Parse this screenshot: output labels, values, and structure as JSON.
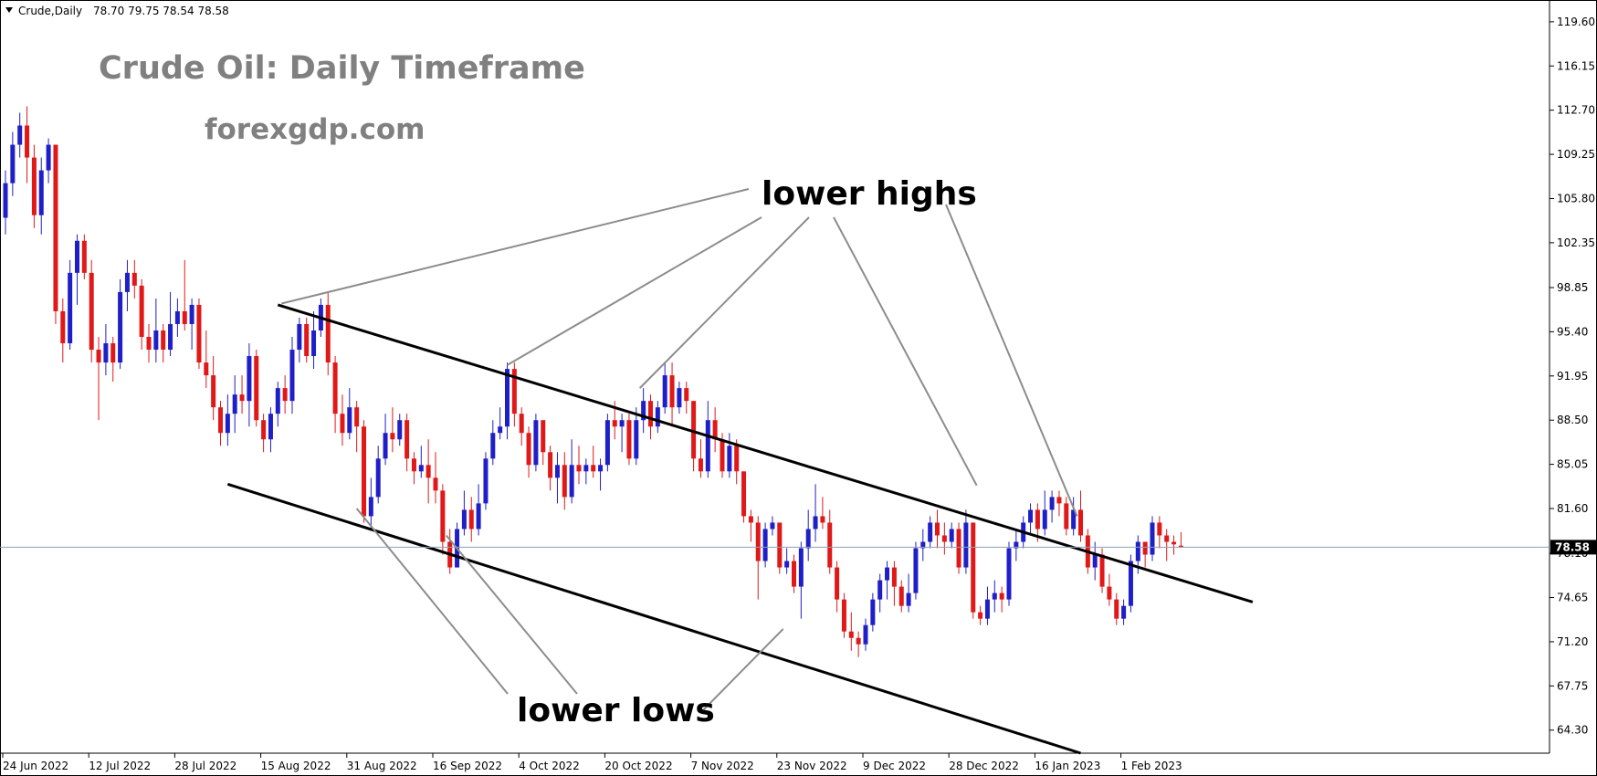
{
  "header": {
    "symbol": "Crude,Daily",
    "ohlc": "78.70 79.75 78.54 78.58"
  },
  "watermark": {
    "title": "Crude Oil: Daily Timeframe",
    "site": "forexgdp.com"
  },
  "annotations": {
    "upper": "lower highs",
    "lower": "lower lows"
  },
  "current_price_label": "78.58",
  "colors": {
    "bull": "#1f1fc8",
    "bear": "#e01818",
    "channel": "#000000",
    "pointer": "#8c8c8c",
    "price_line": "#8ea0b8"
  },
  "chart_data": {
    "type": "candlestick",
    "ylim": [
      62.5,
      121.3
    ],
    "yticks": [
      64.3,
      67.75,
      71.2,
      74.65,
      78.1,
      81.6,
      85.05,
      88.5,
      91.95,
      95.4,
      98.85,
      102.35,
      105.8,
      109.25,
      112.7,
      116.15,
      119.6
    ],
    "ytick_labels": [
      "64.30",
      "67.75",
      "71.20",
      "74.65",
      "78.10",
      "81.60",
      "85.05",
      "88.50",
      "91.95",
      "95.40",
      "98.85",
      "102.35",
      "105.80",
      "109.25",
      "112.70",
      "116.15",
      "119.60"
    ],
    "xtick_labels": [
      "24 Jun 2022",
      "12 Jul 2022",
      "28 Jul 2022",
      "15 Aug 2022",
      "31 Aug 2022",
      "16 Sep 2022",
      "4 Oct 2022",
      "20 Oct 2022",
      "7 Nov 2022",
      "23 Nov 2022",
      "9 Dec 2022",
      "28 Dec 2022",
      "16 Jan 2023",
      "1 Feb 2023"
    ],
    "xtick_bars": [
      0,
      12,
      24,
      36,
      48,
      60,
      72,
      84,
      96,
      108,
      120,
      132,
      144,
      156
    ],
    "current_price": 78.58,
    "candles": [
      {
        "o": 104.3,
        "c": 107.0,
        "h": 108.0,
        "l": 103.0
      },
      {
        "o": 107.0,
        "c": 110.0,
        "h": 111.0,
        "l": 106.0
      },
      {
        "o": 110.0,
        "c": 111.5,
        "h": 112.5,
        "l": 109.0
      },
      {
        "o": 111.5,
        "c": 109.0,
        "h": 113.0,
        "l": 107.0
      },
      {
        "o": 109.0,
        "c": 104.5,
        "h": 110.0,
        "l": 103.5
      },
      {
        "o": 104.5,
        "c": 108.0,
        "h": 109.0,
        "l": 103.0
      },
      {
        "o": 108.0,
        "c": 110.0,
        "h": 110.5,
        "l": 107.0
      },
      {
        "o": 110.0,
        "c": 97.0,
        "h": 110.0,
        "l": 96.0
      },
      {
        "o": 97.0,
        "c": 94.5,
        "h": 98.0,
        "l": 93.0
      },
      {
        "o": 94.5,
        "c": 100.0,
        "h": 101.0,
        "l": 94.0
      },
      {
        "o": 100.0,
        "c": 102.5,
        "h": 103.0,
        "l": 97.5
      },
      {
        "o": 102.5,
        "c": 100.0,
        "h": 103.0,
        "l": 99.5
      },
      {
        "o": 100.0,
        "c": 94.0,
        "h": 101.0,
        "l": 93.0
      },
      {
        "o": 94.0,
        "c": 93.0,
        "h": 95.0,
        "l": 88.5
      },
      {
        "o": 93.0,
        "c": 94.5,
        "h": 96.0,
        "l": 92.0
      },
      {
        "o": 94.5,
        "c": 93.0,
        "h": 95.0,
        "l": 91.5
      },
      {
        "o": 93.0,
        "c": 98.5,
        "h": 99.5,
        "l": 92.5
      },
      {
        "o": 98.5,
        "c": 100.0,
        "h": 101.0,
        "l": 97.0
      },
      {
        "o": 100.0,
        "c": 99.0,
        "h": 101.0,
        "l": 98.0
      },
      {
        "o": 99.0,
        "c": 95.0,
        "h": 99.5,
        "l": 94.0
      },
      {
        "o": 95.0,
        "c": 94.0,
        "h": 96.0,
        "l": 93.0
      },
      {
        "o": 94.0,
        "c": 95.5,
        "h": 98.0,
        "l": 93.0
      },
      {
        "o": 95.5,
        "c": 94.0,
        "h": 96.0,
        "l": 93.0
      },
      {
        "o": 94.0,
        "c": 96.0,
        "h": 98.5,
        "l": 93.5
      },
      {
        "o": 96.0,
        "c": 97.0,
        "h": 98.0,
        "l": 95.0
      },
      {
        "o": 97.0,
        "c": 96.0,
        "h": 101.0,
        "l": 95.5
      },
      {
        "o": 96.0,
        "c": 97.5,
        "h": 98.0,
        "l": 94.0
      },
      {
        "o": 97.5,
        "c": 93.0,
        "h": 98.0,
        "l": 92.5
      },
      {
        "o": 93.0,
        "c": 92.0,
        "h": 95.5,
        "l": 91.0
      },
      {
        "o": 92.0,
        "c": 89.5,
        "h": 93.5,
        "l": 88.5
      },
      {
        "o": 89.5,
        "c": 87.5,
        "h": 90.0,
        "l": 86.5
      },
      {
        "o": 87.5,
        "c": 89.0,
        "h": 90.5,
        "l": 86.5
      },
      {
        "o": 89.0,
        "c": 90.5,
        "h": 92.0,
        "l": 87.5
      },
      {
        "o": 90.5,
        "c": 90.0,
        "h": 92.0,
        "l": 89.0
      },
      {
        "o": 90.0,
        "c": 93.5,
        "h": 94.5,
        "l": 88.0
      },
      {
        "o": 93.5,
        "c": 88.5,
        "h": 94.0,
        "l": 88.0
      },
      {
        "o": 88.5,
        "c": 87.0,
        "h": 89.0,
        "l": 86.0
      },
      {
        "o": 87.0,
        "c": 89.0,
        "h": 89.5,
        "l": 86.0
      },
      {
        "o": 89.0,
        "c": 91.0,
        "h": 91.5,
        "l": 88.0
      },
      {
        "o": 91.0,
        "c": 90.0,
        "h": 92.0,
        "l": 89.0
      },
      {
        "o": 90.0,
        "c": 94.0,
        "h": 95.0,
        "l": 89.0
      },
      {
        "o": 94.0,
        "c": 96.0,
        "h": 96.5,
        "l": 93.0
      },
      {
        "o": 96.0,
        "c": 93.5,
        "h": 96.5,
        "l": 93.0
      },
      {
        "o": 93.5,
        "c": 95.5,
        "h": 97.0,
        "l": 92.5
      },
      {
        "o": 95.5,
        "c": 97.5,
        "h": 98.0,
        "l": 95.0
      },
      {
        "o": 97.5,
        "c": 93.0,
        "h": 98.5,
        "l": 92.0
      },
      {
        "o": 93.0,
        "c": 89.0,
        "h": 93.5,
        "l": 87.5
      },
      {
        "o": 89.0,
        "c": 87.5,
        "h": 90.5,
        "l": 86.5
      },
      {
        "o": 87.5,
        "c": 89.5,
        "h": 91.0,
        "l": 87.0
      },
      {
        "o": 89.5,
        "c": 88.0,
        "h": 90.0,
        "l": 86.0
      },
      {
        "o": 88.0,
        "c": 81.0,
        "h": 88.5,
        "l": 80.5
      },
      {
        "o": 81.0,
        "c": 82.5,
        "h": 84.0,
        "l": 80.0
      },
      {
        "o": 82.5,
        "c": 85.5,
        "h": 86.5,
        "l": 82.0
      },
      {
        "o": 85.5,
        "c": 87.5,
        "h": 89.0,
        "l": 85.0
      },
      {
        "o": 87.5,
        "c": 87.0,
        "h": 89.5,
        "l": 86.0
      },
      {
        "o": 87.0,
        "c": 88.5,
        "h": 89.0,
        "l": 86.5
      },
      {
        "o": 88.5,
        "c": 85.5,
        "h": 89.0,
        "l": 84.5
      },
      {
        "o": 85.5,
        "c": 84.5,
        "h": 86.0,
        "l": 83.5
      },
      {
        "o": 84.5,
        "c": 85.0,
        "h": 86.5,
        "l": 84.0
      },
      {
        "o": 85.0,
        "c": 84.0,
        "h": 87.0,
        "l": 82.0
      },
      {
        "o": 84.0,
        "c": 83.0,
        "h": 86.0,
        "l": 82.0
      },
      {
        "o": 83.0,
        "c": 79.0,
        "h": 83.5,
        "l": 78.0
      },
      {
        "o": 79.0,
        "c": 77.0,
        "h": 80.0,
        "l": 76.5
      },
      {
        "o": 77.0,
        "c": 80.0,
        "h": 80.5,
        "l": 77.0
      },
      {
        "o": 80.0,
        "c": 81.5,
        "h": 83.0,
        "l": 79.5
      },
      {
        "o": 81.5,
        "c": 80.0,
        "h": 82.5,
        "l": 79.0
      },
      {
        "o": 80.0,
        "c": 82.0,
        "h": 83.5,
        "l": 79.5
      },
      {
        "o": 82.0,
        "c": 85.5,
        "h": 86.0,
        "l": 81.5
      },
      {
        "o": 85.5,
        "c": 87.5,
        "h": 88.5,
        "l": 85.0
      },
      {
        "o": 87.5,
        "c": 88.0,
        "h": 89.5,
        "l": 87.0
      },
      {
        "o": 88.0,
        "c": 92.5,
        "h": 93.0,
        "l": 87.0
      },
      {
        "o": 92.5,
        "c": 89.0,
        "h": 93.0,
        "l": 88.0
      },
      {
        "o": 89.0,
        "c": 87.5,
        "h": 89.5,
        "l": 86.5
      },
      {
        "o": 87.5,
        "c": 85.0,
        "h": 88.0,
        "l": 84.0
      },
      {
        "o": 85.0,
        "c": 88.5,
        "h": 89.0,
        "l": 84.5
      },
      {
        "o": 88.5,
        "c": 86.0,
        "h": 88.5,
        "l": 85.0
      },
      {
        "o": 86.0,
        "c": 84.0,
        "h": 86.5,
        "l": 83.0
      },
      {
        "o": 84.0,
        "c": 85.0,
        "h": 86.0,
        "l": 82.0
      },
      {
        "o": 85.0,
        "c": 82.5,
        "h": 86.0,
        "l": 81.5
      },
      {
        "o": 82.5,
        "c": 85.0,
        "h": 87.0,
        "l": 82.0
      },
      {
        "o": 85.0,
        "c": 84.5,
        "h": 86.5,
        "l": 83.5
      },
      {
        "o": 84.5,
        "c": 85.0,
        "h": 85.5,
        "l": 83.5
      },
      {
        "o": 85.0,
        "c": 84.5,
        "h": 86.5,
        "l": 84.0
      },
      {
        "o": 84.5,
        "c": 85.0,
        "h": 85.5,
        "l": 83.0
      },
      {
        "o": 85.0,
        "c": 88.5,
        "h": 89.0,
        "l": 84.5
      },
      {
        "o": 88.5,
        "c": 88.0,
        "h": 90.0,
        "l": 87.0
      },
      {
        "o": 88.0,
        "c": 88.5,
        "h": 89.0,
        "l": 86.0
      },
      {
        "o": 88.5,
        "c": 85.5,
        "h": 89.0,
        "l": 85.0
      },
      {
        "o": 85.5,
        "c": 88.5,
        "h": 89.5,
        "l": 85.0
      },
      {
        "o": 88.5,
        "c": 90.0,
        "h": 91.0,
        "l": 87.5
      },
      {
        "o": 90.0,
        "c": 88.0,
        "h": 90.5,
        "l": 87.0
      },
      {
        "o": 88.0,
        "c": 89.5,
        "h": 90.0,
        "l": 87.5
      },
      {
        "o": 89.5,
        "c": 92.0,
        "h": 93.0,
        "l": 89.0
      },
      {
        "o": 92.0,
        "c": 89.5,
        "h": 93.0,
        "l": 88.0
      },
      {
        "o": 89.5,
        "c": 91.0,
        "h": 91.5,
        "l": 89.0
      },
      {
        "o": 91.0,
        "c": 90.0,
        "h": 91.5,
        "l": 89.0
      },
      {
        "o": 90.0,
        "c": 85.5,
        "h": 90.0,
        "l": 84.5
      },
      {
        "o": 85.5,
        "c": 84.5,
        "h": 87.0,
        "l": 84.0
      },
      {
        "o": 84.5,
        "c": 88.5,
        "h": 90.0,
        "l": 84.0
      },
      {
        "o": 88.5,
        "c": 87.0,
        "h": 89.5,
        "l": 86.0
      },
      {
        "o": 87.0,
        "c": 84.5,
        "h": 87.5,
        "l": 84.0
      },
      {
        "o": 84.5,
        "c": 86.5,
        "h": 87.5,
        "l": 84.0
      },
      {
        "o": 86.5,
        "c": 84.5,
        "h": 87.0,
        "l": 83.5
      },
      {
        "o": 84.5,
        "c": 81.0,
        "h": 84.5,
        "l": 80.5
      },
      {
        "o": 81.0,
        "c": 80.5,
        "h": 81.5,
        "l": 79.0
      },
      {
        "o": 80.5,
        "c": 77.5,
        "h": 81.0,
        "l": 74.5
      },
      {
        "o": 77.5,
        "c": 80.0,
        "h": 80.5,
        "l": 77.0
      },
      {
        "o": 80.0,
        "c": 80.5,
        "h": 81.0,
        "l": 79.5
      },
      {
        "o": 80.5,
        "c": 77.0,
        "h": 80.5,
        "l": 76.5
      },
      {
        "o": 77.0,
        "c": 77.5,
        "h": 78.5,
        "l": 76.5
      },
      {
        "o": 77.5,
        "c": 75.5,
        "h": 78.0,
        "l": 75.0
      },
      {
        "o": 75.5,
        "c": 78.5,
        "h": 79.0,
        "l": 73.0
      },
      {
        "o": 78.5,
        "c": 80.0,
        "h": 81.5,
        "l": 77.5
      },
      {
        "o": 80.0,
        "c": 81.0,
        "h": 83.5,
        "l": 79.0
      },
      {
        "o": 81.0,
        "c": 80.5,
        "h": 82.5,
        "l": 80.0
      },
      {
        "o": 80.5,
        "c": 77.0,
        "h": 81.5,
        "l": 76.5
      },
      {
        "o": 77.0,
        "c": 74.5,
        "h": 77.5,
        "l": 73.5
      },
      {
        "o": 74.5,
        "c": 72.0,
        "h": 75.0,
        "l": 71.5
      },
      {
        "o": 72.0,
        "c": 71.5,
        "h": 73.5,
        "l": 70.5
      },
      {
        "o": 71.5,
        "c": 71.0,
        "h": 72.0,
        "l": 70.0
      },
      {
        "o": 71.0,
        "c": 72.5,
        "h": 73.0,
        "l": 70.5
      },
      {
        "o": 72.5,
        "c": 74.5,
        "h": 75.0,
        "l": 72.0
      },
      {
        "o": 74.5,
        "c": 76.0,
        "h": 76.5,
        "l": 73.5
      },
      {
        "o": 76.0,
        "c": 77.0,
        "h": 77.5,
        "l": 74.5
      },
      {
        "o": 77.0,
        "c": 75.5,
        "h": 77.5,
        "l": 74.0
      },
      {
        "o": 75.5,
        "c": 74.0,
        "h": 76.0,
        "l": 73.5
      },
      {
        "o": 74.0,
        "c": 75.0,
        "h": 76.5,
        "l": 73.5
      },
      {
        "o": 75.0,
        "c": 78.5,
        "h": 79.0,
        "l": 74.5
      },
      {
        "o": 78.5,
        "c": 79.0,
        "h": 80.0,
        "l": 77.5
      },
      {
        "o": 79.0,
        "c": 80.5,
        "h": 81.0,
        "l": 78.5
      },
      {
        "o": 80.5,
        "c": 79.5,
        "h": 81.5,
        "l": 78.5
      },
      {
        "o": 79.5,
        "c": 79.0,
        "h": 80.5,
        "l": 78.0
      },
      {
        "o": 79.0,
        "c": 80.0,
        "h": 80.5,
        "l": 78.5
      },
      {
        "o": 80.0,
        "c": 77.0,
        "h": 80.5,
        "l": 76.5
      },
      {
        "o": 77.0,
        "c": 80.5,
        "h": 81.5,
        "l": 76.5
      },
      {
        "o": 80.5,
        "c": 73.5,
        "h": 80.5,
        "l": 73.0
      },
      {
        "o": 73.5,
        "c": 73.0,
        "h": 74.0,
        "l": 72.5
      },
      {
        "o": 73.0,
        "c": 74.5,
        "h": 75.5,
        "l": 72.5
      },
      {
        "o": 74.5,
        "c": 75.0,
        "h": 76.0,
        "l": 73.5
      },
      {
        "o": 75.0,
        "c": 74.5,
        "h": 75.5,
        "l": 73.5
      },
      {
        "o": 74.5,
        "c": 78.5,
        "h": 79.0,
        "l": 74.0
      },
      {
        "o": 78.5,
        "c": 79.0,
        "h": 80.0,
        "l": 77.5
      },
      {
        "o": 79.0,
        "c": 80.5,
        "h": 81.0,
        "l": 78.5
      },
      {
        "o": 80.5,
        "c": 81.5,
        "h": 82.0,
        "l": 79.5
      },
      {
        "o": 81.5,
        "c": 80.0,
        "h": 82.0,
        "l": 79.0
      },
      {
        "o": 80.0,
        "c": 81.5,
        "h": 83.0,
        "l": 79.5
      },
      {
        "o": 81.5,
        "c": 82.5,
        "h": 83.0,
        "l": 80.5
      },
      {
        "o": 82.5,
        "c": 82.0,
        "h": 83.0,
        "l": 81.0
      },
      {
        "o": 82.0,
        "c": 80.0,
        "h": 82.5,
        "l": 79.5
      },
      {
        "o": 80.0,
        "c": 81.5,
        "h": 82.5,
        "l": 79.5
      },
      {
        "o": 81.5,
        "c": 79.5,
        "h": 83.0,
        "l": 79.0
      },
      {
        "o": 79.5,
        "c": 77.0,
        "h": 80.0,
        "l": 76.5
      },
      {
        "o": 77.0,
        "c": 78.0,
        "h": 79.0,
        "l": 76.0
      },
      {
        "o": 78.0,
        "c": 75.5,
        "h": 78.5,
        "l": 75.0
      },
      {
        "o": 75.5,
        "c": 74.5,
        "h": 76.5,
        "l": 74.0
      },
      {
        "o": 74.5,
        "c": 73.0,
        "h": 75.0,
        "l": 72.5
      },
      {
        "o": 73.0,
        "c": 74.0,
        "h": 74.5,
        "l": 72.5
      },
      {
        "o": 74.0,
        "c": 77.5,
        "h": 78.0,
        "l": 73.5
      },
      {
        "o": 77.5,
        "c": 79.0,
        "h": 79.5,
        "l": 76.5
      },
      {
        "o": 79.0,
        "c": 78.0,
        "h": 79.0,
        "l": 77.0
      },
      {
        "o": 78.0,
        "c": 80.5,
        "h": 81.0,
        "l": 77.5
      },
      {
        "o": 80.5,
        "c": 79.5,
        "h": 81.0,
        "l": 78.5
      },
      {
        "o": 79.5,
        "c": 79.0,
        "h": 80.0,
        "l": 77.5
      },
      {
        "o": 79.0,
        "c": 78.8,
        "h": 79.5,
        "l": 78.0
      },
      {
        "o": 78.7,
        "c": 78.58,
        "h": 79.75,
        "l": 78.54
      }
    ],
    "channel_upper": [
      [
        38,
        97.5
      ],
      [
        174,
        74.3
      ]
    ],
    "channel_lower": [
      [
        31,
        83.5
      ],
      [
        150,
        62.5
      ]
    ]
  }
}
